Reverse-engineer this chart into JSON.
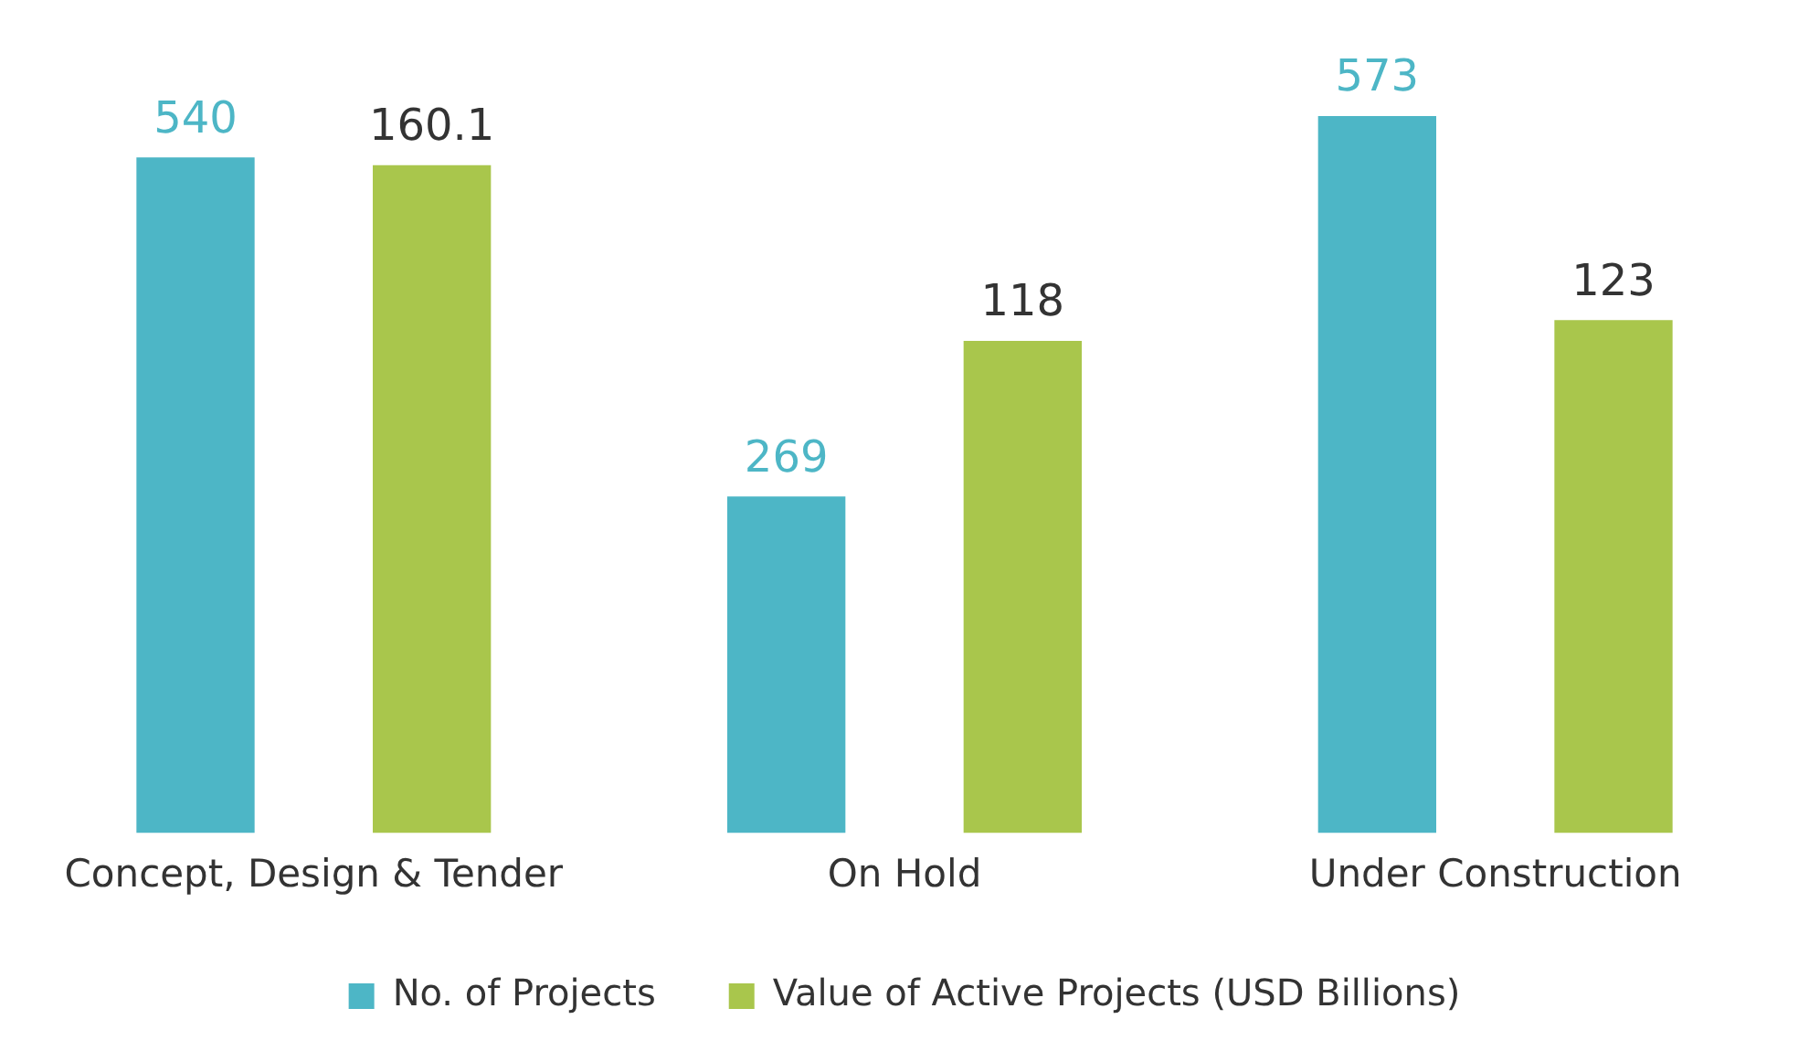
{
  "chart_data": {
    "type": "bar",
    "categories": [
      "Concept, Design & Tender",
      "On Hold",
      "Under Construction"
    ],
    "series": [
      {
        "name": "No. of Projects",
        "color": "#4db6c6",
        "values": [
          540,
          269,
          573
        ]
      },
      {
        "name": "Value of Active Projects (USD Billions)",
        "color": "#a9c64c",
        "values": [
          160.1,
          118,
          123
        ],
        "axis": "y2"
      }
    ],
    "tick_labels": "x",
    "grid": false,
    "legend": "bottom",
    "data_labels": true
  }
}
